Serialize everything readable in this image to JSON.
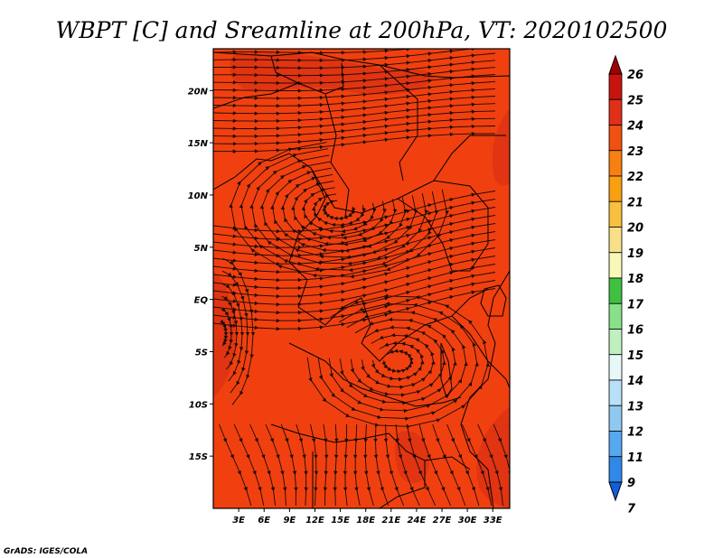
{
  "title": "WBPT [C] and Sreamline at 200hPa, VT: 2020102500",
  "credit": "GrADS: IGES/COLA",
  "map": {
    "lon_range": [
      0,
      35
    ],
    "lat_range": [
      -20,
      24
    ],
    "lon_ticks": [
      {
        "value": 3,
        "label": "3E"
      },
      {
        "value": 6,
        "label": "6E"
      },
      {
        "value": 9,
        "label": "9E"
      },
      {
        "value": 12,
        "label": "12E"
      },
      {
        "value": 15,
        "label": "15E"
      },
      {
        "value": 18,
        "label": "18E"
      },
      {
        "value": 21,
        "label": "21E"
      },
      {
        "value": 24,
        "label": "24E"
      },
      {
        "value": 27,
        "label": "27E"
      },
      {
        "value": 30,
        "label": "30E"
      },
      {
        "value": 33,
        "label": "33E"
      }
    ],
    "lat_ticks": [
      {
        "value": 20,
        "label": "20N"
      },
      {
        "value": 15,
        "label": "15N"
      },
      {
        "value": 10,
        "label": "10N"
      },
      {
        "value": 5,
        "label": "5N"
      },
      {
        "value": 0,
        "label": "EQ"
      },
      {
        "value": -5,
        "label": "5S"
      },
      {
        "value": -10,
        "label": "10S"
      },
      {
        "value": -15,
        "label": "15S"
      }
    ],
    "fill_color": "#f04010",
    "warm_patch_color": "#e03412",
    "streamline_color": "#1a0a04"
  },
  "colorbar": {
    "labels": [
      "26",
      "25",
      "24",
      "23",
      "22",
      "21",
      "20",
      "19",
      "18",
      "17",
      "16",
      "15",
      "14",
      "13",
      "12",
      "11",
      "9",
      "7"
    ],
    "colors": [
      "#a00000",
      "#c8140e",
      "#e03018",
      "#f05010",
      "#f88010",
      "#f8a010",
      "#f8c040",
      "#f8e088",
      "#f8f8b8",
      "#40c040",
      "#88e088",
      "#c0f0c0",
      "#e8f8f8",
      "#b8e0f8",
      "#90c8f0",
      "#58a8f0",
      "#3088e8",
      "#1060d8"
    ]
  }
}
